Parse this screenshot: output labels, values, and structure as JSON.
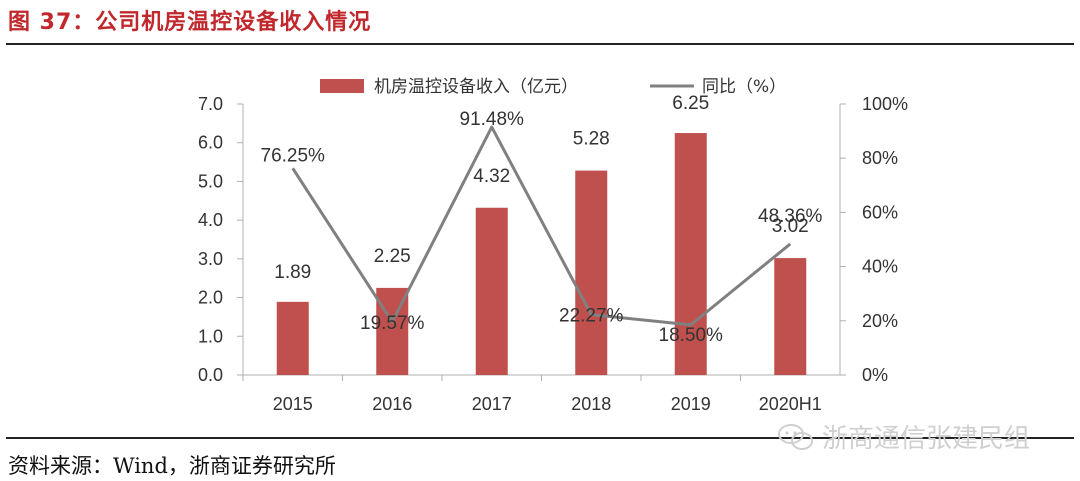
{
  "figure_title": "图 37：公司机房温控设备收入情况",
  "source": "资料来源：Wind，浙商证券研究所",
  "watermark": "浙商通信张建民组",
  "colors": {
    "bar": "#c0504d",
    "line": "#808080",
    "title": "#c0282d"
  },
  "chart_data": {
    "type": "bar",
    "title": "",
    "categories": [
      "2015",
      "2016",
      "2017",
      "2018",
      "2019",
      "2020H1"
    ],
    "series": [
      {
        "name": "机房温控设备收入（亿元）",
        "type": "bar",
        "axis": "left",
        "values": [
          1.89,
          2.25,
          4.32,
          5.28,
          6.25,
          3.02
        ],
        "labels": [
          "1.89",
          "2.25",
          "4.32",
          "5.28",
          "6.25",
          "3.02"
        ]
      },
      {
        "name": "同比（%）",
        "type": "line",
        "axis": "right",
        "values": [
          76.25,
          19.57,
          91.48,
          22.27,
          18.5,
          48.36
        ],
        "labels": [
          "76.25%",
          "19.57%",
          "91.48%",
          "22.27%",
          "18.50%",
          "48.36%"
        ]
      }
    ],
    "y_left": {
      "min": 0,
      "max": 7,
      "ticks": [
        0,
        1,
        2,
        3,
        4,
        5,
        6,
        7
      ],
      "tick_labels": [
        "0.0",
        "1.0",
        "2.0",
        "3.0",
        "4.0",
        "5.0",
        "6.0",
        "7.0"
      ]
    },
    "y_right": {
      "min": 0,
      "max": 100,
      "ticks": [
        0,
        20,
        40,
        60,
        80,
        100
      ],
      "tick_labels": [
        "0%",
        "20%",
        "40%",
        "60%",
        "80%",
        "100%"
      ]
    },
    "legend_position": "top-center",
    "grid": false
  }
}
